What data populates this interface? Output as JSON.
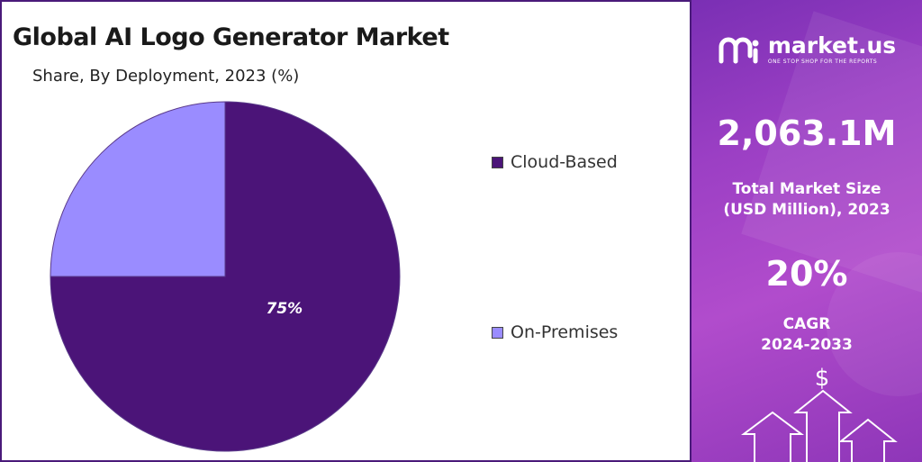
{
  "chart_data": {
    "type": "pie",
    "title": "Global AI Logo Generator Market",
    "subtitle": "Share, By Deployment, 2023 (%)",
    "slices": [
      {
        "label": "Cloud-Based",
        "value": 75,
        "data_label": "75%",
        "color": "#4b1478"
      },
      {
        "label": "On-Premises",
        "value": 25,
        "data_label": "",
        "color": "#9a8cff"
      }
    ],
    "legend_placement": "right"
  },
  "sidebar": {
    "brand": "market.us",
    "tagline": "ONE STOP SHOP FOR THE REPORTS",
    "market_size_value": "2,063.1M",
    "market_size_label_line1": "Total Market Size",
    "market_size_label_line2": "(USD Million), 2023",
    "cagr_value": "20%",
    "cagr_label_line1": "CAGR",
    "cagr_label_line2": "2024-2033",
    "dollar_icon": "dollar-icon",
    "accent_color": "#9b3fc4"
  }
}
